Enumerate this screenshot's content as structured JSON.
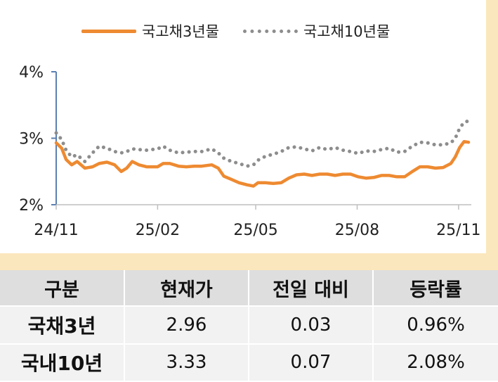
{
  "chart_data": {
    "type": "line",
    "series": [
      {
        "name": "국고채3년물",
        "color": "#ee8a31",
        "style": "solid",
        "points": [
          [
            "2024-11-01",
            2.93
          ],
          [
            "2024-11-06",
            2.85
          ],
          [
            "2024-11-10",
            2.68
          ],
          [
            "2024-11-15",
            2.6
          ],
          [
            "2024-11-20",
            2.65
          ],
          [
            "2024-11-27",
            2.55
          ],
          [
            "2024-12-04",
            2.57
          ],
          [
            "2024-12-10",
            2.62
          ],
          [
            "2024-12-17",
            2.64
          ],
          [
            "2024-12-24",
            2.6
          ],
          [
            "2024-12-30",
            2.5
          ],
          [
            "2025-01-04",
            2.55
          ],
          [
            "2025-01-09",
            2.65
          ],
          [
            "2025-01-15",
            2.6
          ],
          [
            "2025-01-22",
            2.57
          ],
          [
            "2025-02-01",
            2.57
          ],
          [
            "2025-02-06",
            2.62
          ],
          [
            "2025-02-12",
            2.62
          ],
          [
            "2025-02-20",
            2.58
          ],
          [
            "2025-02-27",
            2.57
          ],
          [
            "2025-03-06",
            2.58
          ],
          [
            "2025-03-13",
            2.58
          ],
          [
            "2025-03-22",
            2.6
          ],
          [
            "2025-03-28",
            2.55
          ],
          [
            "2025-04-02",
            2.43
          ],
          [
            "2025-04-09",
            2.38
          ],
          [
            "2025-04-16",
            2.33
          ],
          [
            "2025-04-23",
            2.3
          ],
          [
            "2025-04-29",
            2.28
          ],
          [
            "2025-05-03",
            2.33
          ],
          [
            "2025-05-10",
            2.33
          ],
          [
            "2025-05-17",
            2.32
          ],
          [
            "2025-05-24",
            2.33
          ],
          [
            "2025-05-31",
            2.4
          ],
          [
            "2025-06-07",
            2.45
          ],
          [
            "2025-06-14",
            2.46
          ],
          [
            "2025-06-21",
            2.44
          ],
          [
            "2025-06-28",
            2.46
          ],
          [
            "2025-07-05",
            2.46
          ],
          [
            "2025-07-12",
            2.44
          ],
          [
            "2025-07-19",
            2.46
          ],
          [
            "2025-07-26",
            2.46
          ],
          [
            "2025-08-02",
            2.42
          ],
          [
            "2025-08-09",
            2.4
          ],
          [
            "2025-08-16",
            2.41
          ],
          [
            "2025-08-23",
            2.44
          ],
          [
            "2025-08-30",
            2.44
          ],
          [
            "2025-09-06",
            2.42
          ],
          [
            "2025-09-13",
            2.42
          ],
          [
            "2025-09-20",
            2.5
          ],
          [
            "2025-09-27",
            2.57
          ],
          [
            "2025-10-04",
            2.57
          ],
          [
            "2025-10-11",
            2.55
          ],
          [
            "2025-10-18",
            2.56
          ],
          [
            "2025-10-25",
            2.62
          ],
          [
            "2025-10-29",
            2.72
          ],
          [
            "2025-11-02",
            2.86
          ],
          [
            "2025-11-06",
            2.95
          ],
          [
            "2025-11-10",
            2.94
          ]
        ]
      },
      {
        "name": "국고채10년물",
        "color": "#8d8d8d",
        "style": "dotted",
        "points": [
          [
            "2024-11-01",
            3.08
          ],
          [
            "2024-11-06",
            2.98
          ],
          [
            "2024-11-10",
            2.82
          ],
          [
            "2024-11-15",
            2.72
          ],
          [
            "2024-11-20",
            2.75
          ],
          [
            "2024-11-27",
            2.65
          ],
          [
            "2024-12-04",
            2.78
          ],
          [
            "2024-12-10",
            2.88
          ],
          [
            "2024-12-17",
            2.85
          ],
          [
            "2024-12-24",
            2.8
          ],
          [
            "2024-12-30",
            2.78
          ],
          [
            "2025-01-04",
            2.8
          ],
          [
            "2025-01-09",
            2.84
          ],
          [
            "2025-01-15",
            2.83
          ],
          [
            "2025-01-22",
            2.82
          ],
          [
            "2025-02-01",
            2.84
          ],
          [
            "2025-02-06",
            2.88
          ],
          [
            "2025-02-12",
            2.82
          ],
          [
            "2025-02-20",
            2.78
          ],
          [
            "2025-02-27",
            2.79
          ],
          [
            "2025-03-06",
            2.8
          ],
          [
            "2025-03-13",
            2.8
          ],
          [
            "2025-03-22",
            2.84
          ],
          [
            "2025-03-28",
            2.78
          ],
          [
            "2025-04-02",
            2.7
          ],
          [
            "2025-04-09",
            2.65
          ],
          [
            "2025-04-16",
            2.62
          ],
          [
            "2025-04-23",
            2.58
          ],
          [
            "2025-04-29",
            2.6
          ],
          [
            "2025-05-03",
            2.67
          ],
          [
            "2025-05-10",
            2.73
          ],
          [
            "2025-05-17",
            2.76
          ],
          [
            "2025-05-24",
            2.8
          ],
          [
            "2025-05-31",
            2.86
          ],
          [
            "2025-06-07",
            2.87
          ],
          [
            "2025-06-14",
            2.84
          ],
          [
            "2025-06-21",
            2.81
          ],
          [
            "2025-06-28",
            2.86
          ],
          [
            "2025-07-05",
            2.83
          ],
          [
            "2025-07-12",
            2.86
          ],
          [
            "2025-07-19",
            2.82
          ],
          [
            "2025-07-26",
            2.8
          ],
          [
            "2025-08-02",
            2.77
          ],
          [
            "2025-08-09",
            2.81
          ],
          [
            "2025-08-16",
            2.8
          ],
          [
            "2025-08-23",
            2.83
          ],
          [
            "2025-08-30",
            2.85
          ],
          [
            "2025-09-06",
            2.79
          ],
          [
            "2025-09-13",
            2.8
          ],
          [
            "2025-09-20",
            2.88
          ],
          [
            "2025-09-27",
            2.94
          ],
          [
            "2025-10-04",
            2.93
          ],
          [
            "2025-10-11",
            2.9
          ],
          [
            "2025-10-18",
            2.9
          ],
          [
            "2025-10-25",
            2.93
          ],
          [
            "2025-10-29",
            3.0
          ],
          [
            "2025-11-02",
            3.15
          ],
          [
            "2025-11-06",
            3.24
          ],
          [
            "2025-11-10",
            3.26
          ]
        ]
      }
    ],
    "xlim": [
      "2024-11-01",
      "2025-11-10"
    ],
    "ylim": [
      2,
      4
    ],
    "yticks": [
      2,
      3,
      4
    ],
    "ytick_labels": [
      "2%",
      "3%",
      "4%"
    ],
    "xticks": [
      "2024-11-01",
      "2025-02-01",
      "2025-05-01",
      "2025-08-01",
      "2025-11-01"
    ],
    "xtick_labels": [
      "24/11",
      "25/02",
      "25/05",
      "25/08",
      "25/11"
    ],
    "legend_position": "top",
    "grid": false
  },
  "table": {
    "headers": [
      "구분",
      "현재가",
      "전일 대비",
      "등락률"
    ],
    "rows": [
      [
        "국채3년",
        "2.96",
        "0.03",
        "0.96%"
      ],
      [
        "국내10년",
        "3.33",
        "0.07",
        "2.08%"
      ]
    ]
  }
}
